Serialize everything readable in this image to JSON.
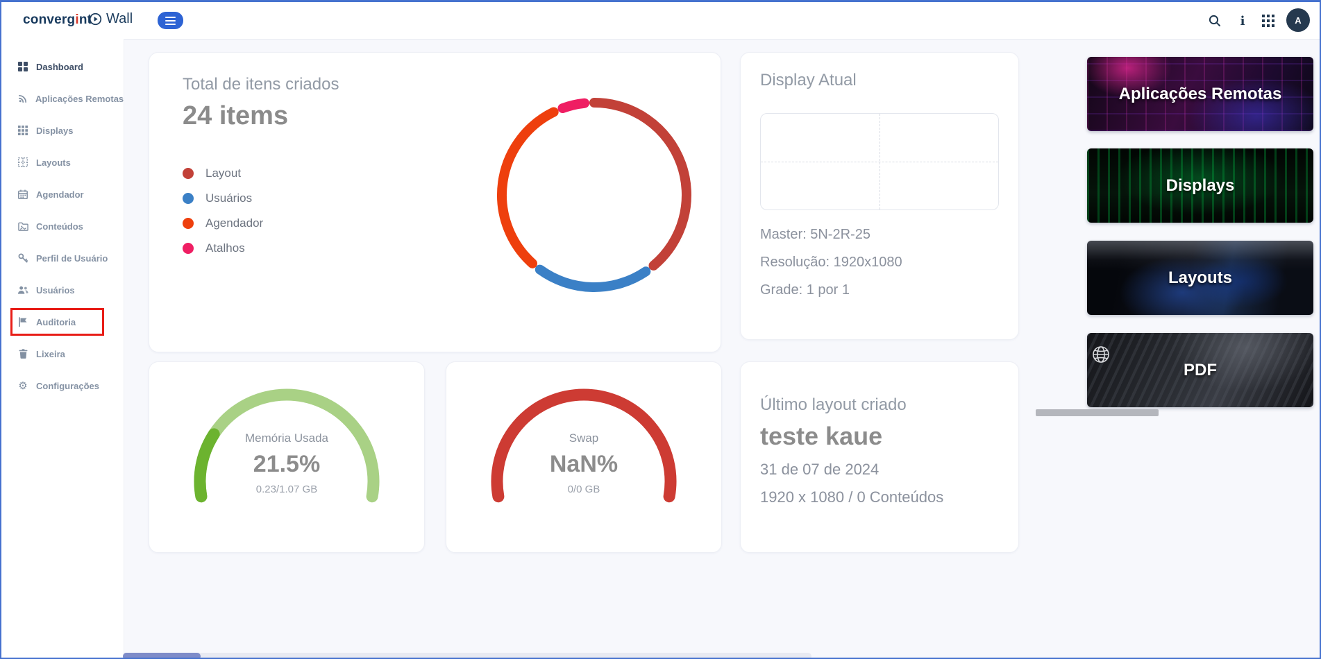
{
  "header": {
    "logo": {
      "pre": "converg",
      "accent": "i",
      "post": "nt"
    },
    "app_name": "Wall",
    "avatar_initial": "A"
  },
  "sidebar": {
    "items": [
      {
        "label": "Dashboard"
      },
      {
        "label": "Aplicações Remotas"
      },
      {
        "label": "Displays"
      },
      {
        "label": "Layouts"
      },
      {
        "label": "Agendador"
      },
      {
        "label": "Conteúdos"
      },
      {
        "label": "Perfil de Usuário"
      },
      {
        "label": "Usuários"
      },
      {
        "label": "Auditoria"
      },
      {
        "label": "Lixeira"
      },
      {
        "label": "Configurações"
      }
    ],
    "highlighted_item": "Auditoria"
  },
  "totals_card": {
    "title": "Total de itens criados",
    "value": "24 items"
  },
  "display_card": {
    "title": "Display Atual",
    "master": "Master: 5N-2R-25",
    "resolution": "Resolução: 1920x1080",
    "grid": "Grade: 1 por 1"
  },
  "memory_card": {
    "label": "Memória Usada",
    "value": "21.5%",
    "sub": "0.23/1.07 GB"
  },
  "swap_card": {
    "label": "Swap",
    "value": "NaN%",
    "sub": "0/0 GB"
  },
  "last_layout_card": {
    "title": "Último layout criado",
    "name": "teste kaue",
    "date": "31 de 07 de 2024",
    "meta": "1920 x 1080  /  0 Conteúdos"
  },
  "shortcuts": [
    {
      "label": "Aplicações Remotas"
    },
    {
      "label": "Displays"
    },
    {
      "label": "Layouts"
    },
    {
      "label": "PDF"
    }
  ],
  "chart_data": [
    {
      "type": "pie",
      "variant": "donut",
      "title": "Total de itens criados",
      "total_label": "24 items",
      "categories": [
        "Layout",
        "Usuários",
        "Agendador",
        "Atalhos"
      ],
      "values": [
        10,
        5,
        8,
        1
      ],
      "colors": [
        "#c24138",
        "#3b80c6",
        "#ee3f0d",
        "#ef1e63"
      ],
      "legend_position": "left",
      "gap_degrees": 6,
      "stroke_linecap": "round"
    },
    {
      "type": "gauge",
      "title": "Memória Usada",
      "value_percent": 21.5,
      "value_label": "21.5%",
      "sub_label": "0.23/1.07 GB",
      "colors": {
        "fill": "#6cb32f",
        "track": "#a9d185"
      },
      "arc_degrees": 200
    },
    {
      "type": "gauge",
      "title": "Swap",
      "value_percent": null,
      "value_label": "NaN%",
      "sub_label": "0/0 GB",
      "colors": {
        "fill": "#cd3b33",
        "track": "#cd3b33"
      },
      "arc_degrees": 200
    }
  ]
}
